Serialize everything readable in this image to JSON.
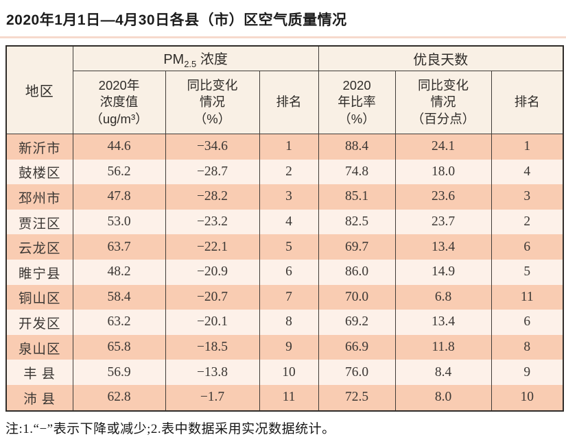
{
  "title": "2020年1月1日—4月30日各县（市）区空气质量情况",
  "table": {
    "region_header": "地区",
    "pm_group": {
      "prefix": "PM",
      "sub": "2.5",
      "suffix": " 浓度"
    },
    "good_days_group": "优良天数",
    "sub_headers": [
      "2020年\n浓度值\n（ug/m³）",
      "同比变化\n情况\n（%）",
      "排名",
      "2020\n年比率\n（%）",
      "同比变化\n情况\n（百分点）",
      "排名"
    ],
    "rows": [
      [
        "新沂市",
        "44.6",
        "−34.6",
        "1",
        "88.4",
        "24.1",
        "1"
      ],
      [
        "鼓楼区",
        "56.2",
        "−28.7",
        "2",
        "74.8",
        "18.0",
        "4"
      ],
      [
        "邳州市",
        "47.8",
        "−28.2",
        "3",
        "85.1",
        "23.6",
        "3"
      ],
      [
        "贾汪区",
        "53.0",
        "−23.2",
        "4",
        "82.5",
        "23.7",
        "2"
      ],
      [
        "云龙区",
        "63.7",
        "−22.1",
        "5",
        "69.7",
        "13.4",
        "6"
      ],
      [
        "睢宁县",
        "48.2",
        "−20.9",
        "6",
        "86.0",
        "14.9",
        "5"
      ],
      [
        "铜山区",
        "58.4",
        "−20.7",
        "7",
        "70.0",
        "6.8",
        "11"
      ],
      [
        "开发区",
        "63.2",
        "−20.1",
        "8",
        "69.2",
        "13.4",
        "6"
      ],
      [
        "泉山区",
        "65.8",
        "−18.5",
        "9",
        "66.9",
        "11.8",
        "8"
      ],
      [
        "丰 县",
        "56.9",
        "−13.8",
        "10",
        "76.0",
        "8.4",
        "9"
      ],
      [
        "沛 县",
        "62.8",
        "−1.7",
        "11",
        "72.5",
        "8.0",
        "10"
      ]
    ]
  },
  "note": "注:1.“−”表示下降或减少;2.表中数据采用实况数据统计。",
  "colors": {
    "row_salmon": "#f9ccb2",
    "row_light": "#fdf1e9",
    "header_bg": "#f9f0e5",
    "border": "#3f3b37",
    "divider": "#f6d9cc"
  }
}
